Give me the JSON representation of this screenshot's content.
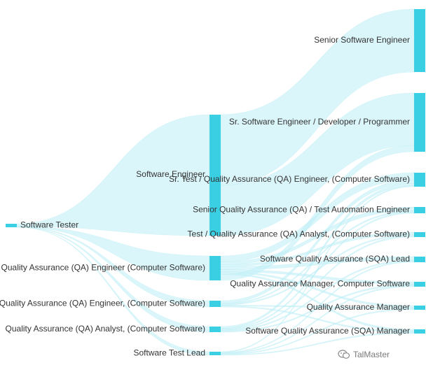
{
  "chart_data": {
    "type": "sankey",
    "colors": {
      "node": "#3bcfe3",
      "link": "#bdeef5"
    },
    "nodes": [
      {
        "id": "software-tester",
        "label": "Software Tester",
        "column": 0
      },
      {
        "id": "software-engineer",
        "label": "Software Engineer",
        "column": 1
      },
      {
        "id": "qa-engineer-cs",
        "label": "Quality Assurance (QA) Engineer (Computer Software)",
        "column": 1
      },
      {
        "id": "qa-engineer-cs-comma",
        "label": "Quality Assurance (QA) Engineer, (Computer Software)",
        "column": 1
      },
      {
        "id": "qa-analyst-cs",
        "label": "Quality Assurance (QA) Analyst, (Computer Software)",
        "column": 1
      },
      {
        "id": "software-test-lead",
        "label": "Software Test Lead",
        "column": 1
      },
      {
        "id": "senior-software-engineer",
        "label": "Senior Software Engineer",
        "column": 2
      },
      {
        "id": "sr-software-engineer-dev",
        "label": "Sr. Software Engineer / Developer / Programmer",
        "column": 2
      },
      {
        "id": "sr-test-qa-engineer",
        "label": "Sr. Test / Quality Assurance (QA) Engineer, (Computer Software)",
        "column": 2
      },
      {
        "id": "senior-qa-automation",
        "label": "Senior Quality Assurance (QA) / Test Automation Engineer",
        "column": 2
      },
      {
        "id": "test-qa-analyst",
        "label": "Test / Quality Assurance (QA) Analyst, (Computer Software)",
        "column": 2
      },
      {
        "id": "sqa-lead",
        "label": "Software Quality Assurance (SQA) Lead",
        "column": 2
      },
      {
        "id": "qa-manager-cs",
        "label": "Quality Assurance Manager, Computer Software",
        "column": 2
      },
      {
        "id": "qa-manager",
        "label": "Quality Assurance Manager",
        "column": 2
      },
      {
        "id": "sqa-manager",
        "label": "Software Quality Assurance (SQA) Manager",
        "column": 2
      }
    ],
    "links": [
      {
        "source": "software-tester",
        "target": "software-engineer",
        "value": 12
      },
      {
        "source": "software-tester",
        "target": "qa-engineer-cs",
        "value": 2.5
      },
      {
        "source": "software-tester",
        "target": "qa-engineer-cs-comma",
        "value": 0.7
      },
      {
        "source": "software-tester",
        "target": "qa-analyst-cs",
        "value": 0.6
      },
      {
        "source": "software-tester",
        "target": "software-test-lead",
        "value": 0.4
      },
      {
        "source": "software-engineer",
        "target": "senior-software-engineer",
        "value": 7
      },
      {
        "source": "software-engineer",
        "target": "sr-software-engineer-dev",
        "value": 5
      },
      {
        "source": "qa-engineer-cs",
        "target": "sr-test-qa-engineer",
        "value": 0.6
      },
      {
        "source": "qa-engineer-cs",
        "target": "senior-qa-automation",
        "value": 0.3
      },
      {
        "source": "qa-engineer-cs",
        "target": "test-qa-analyst",
        "value": 0.2
      },
      {
        "source": "qa-engineer-cs",
        "target": "sqa-lead",
        "value": 0.3
      },
      {
        "source": "qa-engineer-cs",
        "target": "qa-manager-cs",
        "value": 0.2
      },
      {
        "source": "qa-engineer-cs",
        "target": "qa-manager",
        "value": 0.15
      },
      {
        "source": "qa-engineer-cs",
        "target": "sqa-manager",
        "value": 0.15
      },
      {
        "source": "qa-engineer-cs",
        "target": "sr-software-engineer-dev",
        "value": 0.6
      },
      {
        "source": "qa-engineer-cs-comma",
        "target": "sr-test-qa-engineer",
        "value": 0.3
      },
      {
        "source": "qa-engineer-cs-comma",
        "target": "senior-qa-automation",
        "value": 0.1
      },
      {
        "source": "qa-engineer-cs-comma",
        "target": "test-qa-analyst",
        "value": 0.1
      },
      {
        "source": "qa-engineer-cs-comma",
        "target": "qa-manager",
        "value": 0.1
      },
      {
        "source": "qa-engineer-cs-comma",
        "target": "sqa-manager",
        "value": 0.1
      },
      {
        "source": "qa-analyst-cs",
        "target": "sr-test-qa-engineer",
        "value": 0.2
      },
      {
        "source": "qa-analyst-cs",
        "target": "senior-qa-automation",
        "value": 0.1
      },
      {
        "source": "qa-analyst-cs",
        "target": "test-qa-analyst",
        "value": 0.1
      },
      {
        "source": "qa-analyst-cs",
        "target": "sqa-lead",
        "value": 0.1
      },
      {
        "source": "qa-analyst-cs",
        "target": "qa-manager-cs",
        "value": 0.1
      },
      {
        "source": "software-test-lead",
        "target": "sr-test-qa-engineer",
        "value": 0.08
      },
      {
        "source": "software-test-lead",
        "target": "sqa-lead",
        "value": 0.08
      },
      {
        "source": "software-test-lead",
        "target": "qa-manager-cs",
        "value": 0.08
      },
      {
        "source": "software-test-lead",
        "target": "qa-manager",
        "value": 0.08
      },
      {
        "source": "software-test-lead",
        "target": "sqa-manager",
        "value": 0.08
      }
    ]
  },
  "watermark": {
    "text": "TalMaster"
  }
}
